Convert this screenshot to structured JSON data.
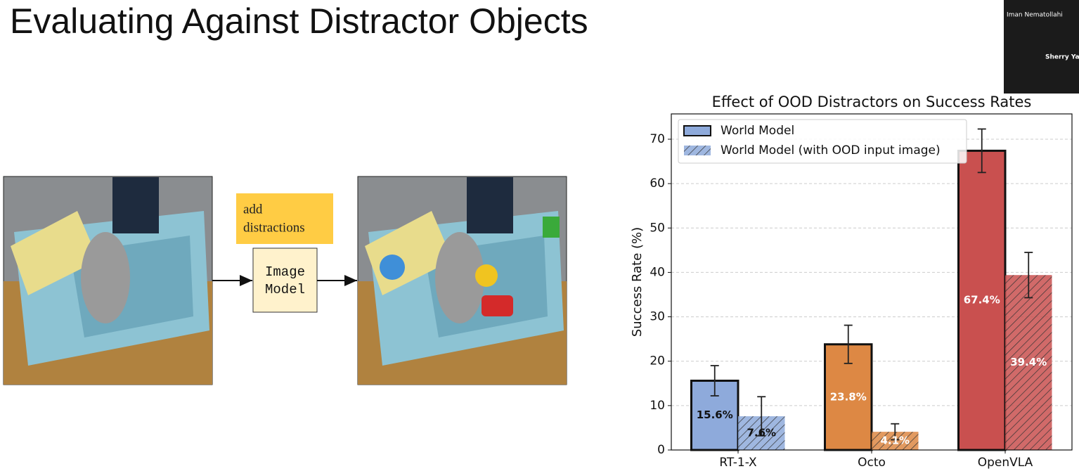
{
  "slide": {
    "title": "Evaluating Against Distractor Objects",
    "diagram": {
      "note": [
        "add",
        "distractions"
      ],
      "model": [
        "Image",
        "Model"
      ]
    },
    "participants": [
      "Iman Nematollahi",
      "Sherry Ya"
    ]
  },
  "chart_data": {
    "type": "grouped_bar",
    "title": "Effect of OOD Distractors on Success Rates",
    "y_label": "Success Rate (%)",
    "categories": [
      "RT-1-X",
      "Octo",
      "OpenVLA"
    ],
    "colors": [
      "#8eaadb",
      "#dd8844",
      "#c9504f"
    ],
    "label_colors": [
      "#111111",
      "#ffffff",
      "#ffffff"
    ],
    "series": [
      {
        "name": "World Model",
        "hatch": false,
        "values": [
          15.6,
          23.8,
          67.4
        ],
        "value_labels": [
          "15.6%",
          "23.8%",
          "67.4%"
        ],
        "errors": [
          3.4,
          4.3,
          4.9
        ]
      },
      {
        "name": "World Model (with OOD input image)",
        "hatch": true,
        "values": [
          7.6,
          4.1,
          39.4
        ],
        "value_labels": [
          "7.6%",
          "4.1%",
          "39.4%"
        ],
        "errors": [
          4.4,
          1.8,
          5.1
        ]
      }
    ],
    "ylim": [
      0,
      75.7
    ],
    "yticks": [
      0,
      10,
      20,
      30,
      40,
      50,
      60,
      70
    ],
    "grid": true,
    "legend": "upper left"
  }
}
